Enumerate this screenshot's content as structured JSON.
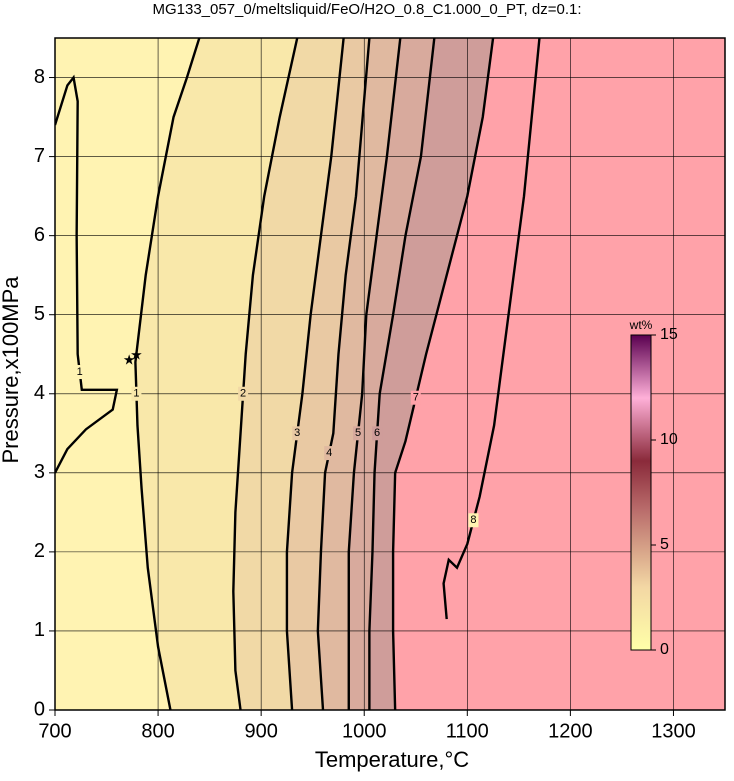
{
  "chart_data": {
    "type": "contour",
    "title": "MG133_057_0/meltsliquid/FeO/H2O_0.8_C1.000_0_PT, dz=0.1:",
    "x_label": "Temperature,°C",
    "y_label": "Pressure,x100MPa",
    "xlim": [
      700,
      1350
    ],
    "ylim": [
      0,
      8.5
    ],
    "xticks": [
      700,
      800,
      900,
      1000,
      1100,
      1200,
      1300
    ],
    "yticks": [
      0,
      1,
      2,
      3,
      4,
      5,
      6,
      7,
      8
    ],
    "grid": true,
    "background": "#fff3b2",
    "contours": [
      {
        "level": 1,
        "x": [
          700,
          712,
          718,
          722,
          721,
          722,
          726,
          760,
          756,
          730,
          712,
          700
        ],
        "y": [
          7.4,
          7.9,
          8.0,
          7.7,
          6.0,
          4.5,
          4.05,
          4.05,
          3.8,
          3.55,
          3.3,
          3.0
        ]
      },
      {
        "level": 1,
        "x": [
          812,
          800,
          790,
          784,
          780,
          778,
          788,
          800,
          815,
          828,
          840
        ],
        "y": [
          0,
          0.8,
          1.8,
          2.8,
          3.6,
          4.4,
          5.5,
          6.5,
          7.5,
          8.0,
          8.5
        ],
        "fill": "#f9e8aa"
      },
      {
        "level": 2,
        "x": [
          880,
          875,
          873,
          875,
          880,
          885,
          892,
          903,
          918,
          935
        ],
        "y": [
          0,
          0.5,
          1.5,
          2.5,
          3.5,
          4.5,
          5.5,
          6.5,
          7.5,
          8.5
        ],
        "fill": "#f1d9a6"
      },
      {
        "level": 3,
        "x": [
          930,
          925,
          925,
          930,
          940,
          948,
          958,
          968,
          980
        ],
        "y": [
          0,
          1,
          2,
          3,
          4,
          5,
          6,
          7,
          8.5
        ],
        "fill": "#e9c9a3"
      },
      {
        "level": 4,
        "x": [
          960,
          955,
          958,
          962,
          970,
          975,
          982,
          992,
          1005
        ],
        "y": [
          0,
          1,
          2,
          3,
          3.5,
          4.5,
          5.5,
          6.5,
          8.5
        ],
        "fill": "#e0b9a0"
      },
      {
        "level": 5,
        "x": [
          985,
          985,
          985,
          990,
          998,
          1002,
          1012,
          1022,
          1035
        ],
        "y": [
          0,
          1,
          2,
          3,
          4,
          5,
          6,
          7,
          8.5
        ],
        "fill": "#d8aa9d"
      },
      {
        "level": 6,
        "x": [
          1005,
          1005,
          1008,
          1010,
          1015,
          1028,
          1040,
          1055,
          1068
        ],
        "y": [
          0,
          1,
          2,
          3,
          4,
          5,
          6,
          7,
          8.5
        ],
        "fill": "#cf9d9a"
      },
      {
        "level": 7,
        "x": [
          1030,
          1028,
          1028,
          1030,
          1040,
          1060,
          1080,
          1100,
          1115,
          1125
        ],
        "y": [
          0,
          1,
          2,
          3,
          3.4,
          4.5,
          5.5,
          6.5,
          7.5,
          8.5
        ],
        "fill": "#ffa2a9"
      },
      {
        "level": 8,
        "x": [
          1080,
          1077,
          1082,
          1090,
          1100,
          1112,
          1126,
          1140,
          1155,
          1170
        ],
        "y": [
          1.15,
          1.6,
          1.9,
          1.8,
          2.1,
          2.7,
          3.6,
          5.0,
          6.5,
          8.5
        ]
      }
    ],
    "points": {
      "x": [
        772,
        779
      ],
      "y": [
        4.42,
        4.48
      ]
    },
    "colorbar": {
      "label": "wt%",
      "clim": [
        0,
        15
      ],
      "ticks": [
        0,
        5,
        10,
        15
      ]
    }
  }
}
